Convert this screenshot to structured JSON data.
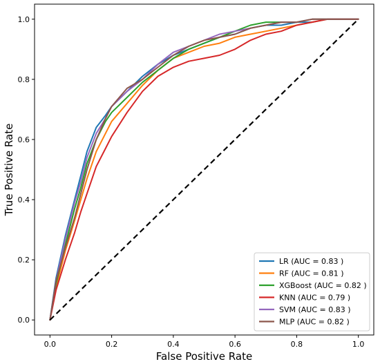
{
  "chart_data": {
    "type": "line",
    "xlabel": "False Positive Rate",
    "ylabel": "True Positive Rate",
    "xlim": [
      -0.05,
      1.05
    ],
    "ylim": [
      -0.05,
      1.05
    ],
    "xticks": [
      "0.0",
      "0.2",
      "0.4",
      "0.6",
      "0.8",
      "1.0"
    ],
    "yticks": [
      "0.0",
      "0.2",
      "0.4",
      "0.6",
      "0.8",
      "1.0"
    ],
    "legend_position": "lower-right",
    "grid": false,
    "baseline": {
      "style": "dashed",
      "color": "#000000",
      "x": [
        0,
        1
      ],
      "y": [
        0,
        1
      ]
    },
    "series": [
      {
        "name": "LR (AUC = 0.83 )",
        "color": "#1f77b4",
        "x": [
          0,
          0.02,
          0.05,
          0.08,
          0.1,
          0.12,
          0.15,
          0.18,
          0.2,
          0.25,
          0.3,
          0.35,
          0.4,
          0.45,
          0.5,
          0.55,
          0.6,
          0.65,
          0.7,
          0.75,
          0.8,
          0.85,
          0.9,
          0.95,
          1.0
        ],
        "y": [
          0,
          0.14,
          0.28,
          0.4,
          0.48,
          0.56,
          0.64,
          0.68,
          0.71,
          0.76,
          0.81,
          0.85,
          0.88,
          0.9,
          0.92,
          0.94,
          0.95,
          0.97,
          0.98,
          0.98,
          0.99,
          0.99,
          1.0,
          1.0,
          1.0
        ]
      },
      {
        "name": "RF (AUC = 0.81 )",
        "color": "#ff7f0e",
        "x": [
          0,
          0.02,
          0.05,
          0.08,
          0.1,
          0.12,
          0.15,
          0.18,
          0.2,
          0.25,
          0.3,
          0.35,
          0.4,
          0.45,
          0.5,
          0.55,
          0.6,
          0.65,
          0.7,
          0.75,
          0.8,
          0.85,
          0.9,
          0.95,
          1.0
        ],
        "y": [
          0,
          0.11,
          0.23,
          0.33,
          0.4,
          0.47,
          0.56,
          0.62,
          0.66,
          0.72,
          0.78,
          0.83,
          0.87,
          0.89,
          0.91,
          0.92,
          0.94,
          0.95,
          0.96,
          0.97,
          0.98,
          0.99,
          1.0,
          1.0,
          1.0
        ]
      },
      {
        "name": "XGBoost (AUC = 0.82 )",
        "color": "#2ca02c",
        "x": [
          0,
          0.02,
          0.05,
          0.08,
          0.1,
          0.12,
          0.15,
          0.18,
          0.2,
          0.25,
          0.3,
          0.35,
          0.4,
          0.45,
          0.5,
          0.55,
          0.6,
          0.65,
          0.7,
          0.75,
          0.8,
          0.85,
          0.9,
          0.95,
          1.0
        ],
        "y": [
          0,
          0.12,
          0.25,
          0.37,
          0.44,
          0.52,
          0.6,
          0.66,
          0.69,
          0.74,
          0.79,
          0.83,
          0.87,
          0.9,
          0.92,
          0.94,
          0.96,
          0.98,
          0.99,
          0.99,
          0.99,
          1.0,
          1.0,
          1.0,
          1.0
        ]
      },
      {
        "name": "KNN (AUC = 0.79 )",
        "color": "#d62728",
        "x": [
          0,
          0.02,
          0.05,
          0.08,
          0.1,
          0.12,
          0.15,
          0.18,
          0.2,
          0.25,
          0.3,
          0.35,
          0.4,
          0.45,
          0.5,
          0.55,
          0.6,
          0.65,
          0.7,
          0.75,
          0.8,
          0.85,
          0.9,
          0.95,
          1.0
        ],
        "y": [
          0,
          0.1,
          0.2,
          0.29,
          0.36,
          0.42,
          0.51,
          0.57,
          0.61,
          0.69,
          0.76,
          0.81,
          0.84,
          0.86,
          0.87,
          0.88,
          0.9,
          0.93,
          0.95,
          0.96,
          0.98,
          0.99,
          1.0,
          1.0,
          1.0
        ]
      },
      {
        "name": "SVM (AUC = 0.83 )",
        "color": "#9467bd",
        "x": [
          0,
          0.02,
          0.05,
          0.08,
          0.1,
          0.12,
          0.15,
          0.18,
          0.2,
          0.25,
          0.3,
          0.35,
          0.4,
          0.45,
          0.5,
          0.55,
          0.6,
          0.65,
          0.7,
          0.75,
          0.8,
          0.85,
          0.9,
          0.95,
          1.0
        ],
        "y": [
          0,
          0.13,
          0.27,
          0.39,
          0.46,
          0.54,
          0.62,
          0.67,
          0.71,
          0.76,
          0.8,
          0.85,
          0.89,
          0.91,
          0.93,
          0.95,
          0.96,
          0.97,
          0.98,
          0.99,
          0.99,
          1.0,
          1.0,
          1.0,
          1.0
        ]
      },
      {
        "name": "MLP (AUC = 0.82 )",
        "color": "#8c564b",
        "x": [
          0,
          0.02,
          0.05,
          0.08,
          0.1,
          0.12,
          0.15,
          0.18,
          0.2,
          0.25,
          0.3,
          0.35,
          0.4,
          0.45,
          0.5,
          0.55,
          0.6,
          0.65,
          0.7,
          0.75,
          0.8,
          0.85,
          0.9,
          0.95,
          1.0
        ],
        "y": [
          0,
          0.13,
          0.24,
          0.34,
          0.42,
          0.5,
          0.6,
          0.67,
          0.71,
          0.77,
          0.8,
          0.84,
          0.88,
          0.91,
          0.93,
          0.94,
          0.95,
          0.97,
          0.98,
          0.99,
          0.99,
          1.0,
          1.0,
          1.0,
          1.0
        ]
      }
    ]
  }
}
